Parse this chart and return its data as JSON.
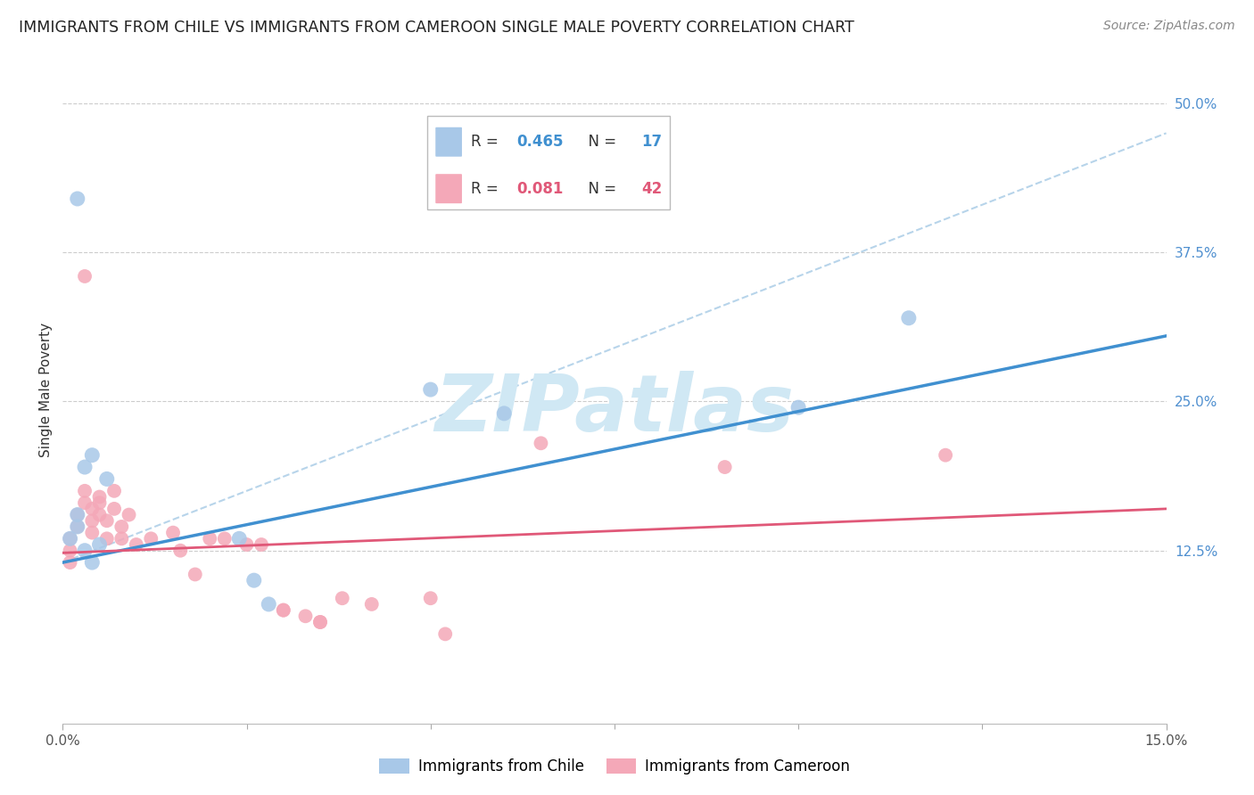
{
  "title": "IMMIGRANTS FROM CHILE VS IMMIGRANTS FROM CAMEROON SINGLE MALE POVERTY CORRELATION CHART",
  "source": "Source: ZipAtlas.com",
  "ylabel": "Single Male Poverty",
  "xlim": [
    0.0,
    0.15
  ],
  "ylim": [
    -0.02,
    0.54
  ],
  "ytick_positions": [
    0.125,
    0.25,
    0.375,
    0.5
  ],
  "ytick_labels": [
    "12.5%",
    "25.0%",
    "37.5%",
    "50.0%"
  ],
  "chile_R": "0.465",
  "chile_N": "17",
  "cameroon_R": "0.081",
  "cameroon_N": "42",
  "chile_color": "#a8c8e8",
  "cameroon_color": "#f4a8b8",
  "chile_line_color": "#4090d0",
  "cameroon_line_color": "#e05878",
  "dashed_line_color": "#b0d0e8",
  "watermark_text": "ZIPatlas",
  "watermark_color": "#d0e8f4",
  "background_color": "#ffffff",
  "grid_color": "#cccccc",
  "title_color": "#222222",
  "source_color": "#888888",
  "axis_label_color": "#333333",
  "ytick_color": "#5090d0",
  "xtick_color": "#555555",
  "chile_scatter_x": [
    0.001,
    0.002,
    0.002,
    0.002,
    0.003,
    0.003,
    0.004,
    0.004,
    0.005,
    0.006,
    0.024,
    0.026,
    0.028,
    0.05,
    0.06,
    0.1,
    0.115
  ],
  "chile_scatter_y": [
    0.135,
    0.155,
    0.145,
    0.42,
    0.125,
    0.195,
    0.115,
    0.205,
    0.13,
    0.185,
    0.135,
    0.1,
    0.08,
    0.26,
    0.24,
    0.245,
    0.32
  ],
  "cameroon_scatter_x": [
    0.001,
    0.001,
    0.001,
    0.002,
    0.002,
    0.003,
    0.003,
    0.003,
    0.004,
    0.004,
    0.004,
    0.005,
    0.005,
    0.005,
    0.006,
    0.006,
    0.007,
    0.007,
    0.008,
    0.008,
    0.009,
    0.01,
    0.012,
    0.015,
    0.016,
    0.018,
    0.02,
    0.022,
    0.025,
    0.027,
    0.03,
    0.03,
    0.033,
    0.035,
    0.035,
    0.038,
    0.042,
    0.05,
    0.052,
    0.065,
    0.09,
    0.12
  ],
  "cameroon_scatter_y": [
    0.135,
    0.125,
    0.115,
    0.155,
    0.145,
    0.175,
    0.165,
    0.355,
    0.16,
    0.15,
    0.14,
    0.17,
    0.165,
    0.155,
    0.15,
    0.135,
    0.175,
    0.16,
    0.145,
    0.135,
    0.155,
    0.13,
    0.135,
    0.14,
    0.125,
    0.105,
    0.135,
    0.135,
    0.13,
    0.13,
    0.075,
    0.075,
    0.07,
    0.065,
    0.065,
    0.085,
    0.08,
    0.085,
    0.055,
    0.215,
    0.195,
    0.205
  ],
  "chile_line_x0": 0.0,
  "chile_line_y0": 0.115,
  "chile_line_x1": 0.15,
  "chile_line_y1": 0.305,
  "cameroon_line_x0": 0.0,
  "cameroon_line_y0": 0.123,
  "cameroon_line_x1": 0.15,
  "cameroon_line_y1": 0.16,
  "dash_line_x0": 0.0,
  "dash_line_y0": 0.115,
  "dash_line_x1": 0.15,
  "dash_line_y1": 0.475
}
